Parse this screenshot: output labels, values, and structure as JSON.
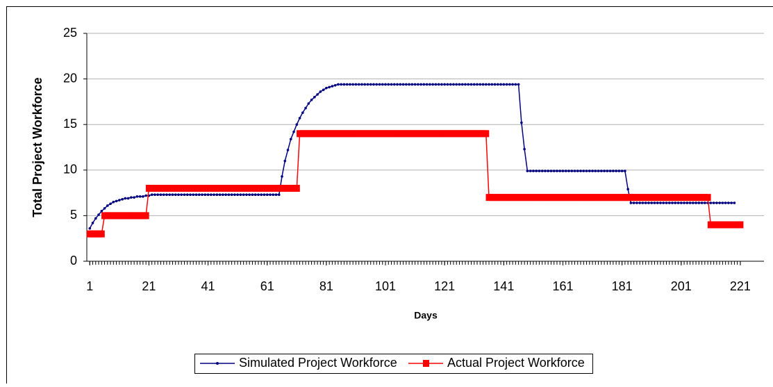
{
  "chart_data": {
    "type": "line",
    "xlabel": "Days",
    "ylabel": "Total Project Workforce",
    "xlim": [
      0,
      229
    ],
    "ylim": [
      0,
      25
    ],
    "xticks": [
      1,
      21,
      41,
      61,
      81,
      101,
      121,
      141,
      161,
      181,
      201,
      221
    ],
    "yticks": [
      0,
      5,
      10,
      15,
      20,
      25
    ],
    "grid": true,
    "legend": "bottom",
    "x": [
      1,
      2,
      3,
      4,
      5,
      6,
      7,
      8,
      9,
      10,
      11,
      12,
      13,
      14,
      15,
      16,
      17,
      18,
      19,
      20,
      21,
      22,
      23,
      24,
      25,
      26,
      27,
      28,
      29,
      30,
      31,
      32,
      33,
      34,
      35,
      36,
      37,
      38,
      39,
      40,
      41,
      42,
      43,
      44,
      45,
      46,
      47,
      48,
      49,
      50,
      51,
      52,
      53,
      54,
      55,
      56,
      57,
      58,
      59,
      60,
      61,
      62,
      63,
      64,
      65,
      66,
      67,
      68,
      69,
      70,
      71,
      72,
      73,
      74,
      75,
      76,
      77,
      78,
      79,
      80,
      81,
      82,
      83,
      84,
      85,
      86,
      87,
      88,
      89,
      90,
      91,
      92,
      93,
      94,
      95,
      96,
      97,
      98,
      99,
      100,
      101,
      102,
      103,
      104,
      105,
      106,
      107,
      108,
      109,
      110,
      111,
      112,
      113,
      114,
      115,
      116,
      117,
      118,
      119,
      120,
      121,
      122,
      123,
      124,
      125,
      126,
      127,
      128,
      129,
      130,
      131,
      132,
      133,
      134,
      135,
      136,
      137,
      138,
      139,
      140,
      141,
      142,
      143,
      144,
      145,
      146,
      147,
      148,
      149,
      150,
      151,
      152,
      153,
      154,
      155,
      156,
      157,
      158,
      159,
      160,
      161,
      162,
      163,
      164,
      165,
      166,
      167,
      168,
      169,
      170,
      171,
      172,
      173,
      174,
      175,
      176,
      177,
      178,
      179,
      180,
      181,
      182,
      183,
      184,
      185,
      186,
      187,
      188,
      189,
      190,
      191,
      192,
      193,
      194,
      195,
      196,
      197,
      198,
      199,
      200,
      201,
      202,
      203,
      204,
      205,
      206,
      207,
      208,
      209,
      210,
      211,
      212,
      213,
      214,
      215,
      216,
      217,
      218,
      219,
      220,
      221
    ],
    "series": [
      {
        "name": "Simulated Project Workforce",
        "color": "#000080",
        "marker": "dot",
        "values": [
          3.6,
          4.2,
          4.7,
          5.1,
          5.5,
          5.8,
          6.1,
          6.3,
          6.5,
          6.6,
          6.7,
          6.8,
          6.9,
          6.9,
          7.0,
          7.0,
          7.1,
          7.1,
          7.1,
          7.2,
          7.2,
          7.3,
          7.3,
          7.3,
          7.3,
          7.3,
          7.3,
          7.3,
          7.3,
          7.3,
          7.3,
          7.3,
          7.3,
          7.3,
          7.3,
          7.3,
          7.3,
          7.3,
          7.3,
          7.3,
          7.3,
          7.3,
          7.3,
          7.3,
          7.3,
          7.3,
          7.3,
          7.3,
          7.3,
          7.3,
          7.3,
          7.3,
          7.3,
          7.3,
          7.3,
          7.3,
          7.3,
          7.3,
          7.3,
          7.3,
          7.3,
          7.3,
          7.3,
          7.3,
          7.3,
          9.3,
          11.0,
          12.2,
          13.4,
          14.2,
          15.0,
          15.7,
          16.3,
          16.8,
          17.3,
          17.7,
          18.0,
          18.3,
          18.6,
          18.8,
          19.0,
          19.1,
          19.2,
          19.3,
          19.4,
          19.4,
          19.4,
          19.4,
          19.4,
          19.4,
          19.4,
          19.4,
          19.4,
          19.4,
          19.4,
          19.4,
          19.4,
          19.4,
          19.4,
          19.4,
          19.4,
          19.4,
          19.4,
          19.4,
          19.4,
          19.4,
          19.4,
          19.4,
          19.4,
          19.4,
          19.4,
          19.4,
          19.4,
          19.4,
          19.4,
          19.4,
          19.4,
          19.4,
          19.4,
          19.4,
          19.4,
          19.4,
          19.4,
          19.4,
          19.4,
          19.4,
          19.4,
          19.4,
          19.4,
          19.4,
          19.4,
          19.4,
          19.4,
          19.4,
          19.4,
          19.4,
          19.4,
          19.4,
          19.4,
          19.4,
          19.4,
          19.4,
          19.4,
          19.4,
          19.4,
          19.4,
          15.2,
          12.3,
          9.9,
          9.9,
          9.9,
          9.9,
          9.9,
          9.9,
          9.9,
          9.9,
          9.9,
          9.9,
          9.9,
          9.9,
          9.9,
          9.9,
          9.9,
          9.9,
          9.9,
          9.9,
          9.9,
          9.9,
          9.9,
          9.9,
          9.9,
          9.9,
          9.9,
          9.9,
          9.9,
          9.9,
          9.9,
          9.9,
          9.9,
          9.9,
          9.9,
          9.9,
          7.9,
          6.4,
          6.4,
          6.4,
          6.4,
          6.4,
          6.4,
          6.4,
          6.4,
          6.4,
          6.4,
          6.4,
          6.4,
          6.4,
          6.4,
          6.4,
          6.4,
          6.4,
          6.4,
          6.4,
          6.4,
          6.4,
          6.4,
          6.4,
          6.4,
          6.4,
          6.4,
          6.4,
          6.4,
          6.4,
          6.4,
          6.4,
          6.4,
          6.4,
          6.4,
          6.4,
          6.4,
          null,
          null
        ]
      },
      {
        "name": "Actual Project Workforce",
        "color": "#ff0000",
        "marker": "square",
        "values": [
          3,
          3,
          3,
          3,
          3,
          5,
          5,
          5,
          5,
          5,
          5,
          5,
          5,
          5,
          5,
          5,
          5,
          5,
          5,
          5,
          8,
          8,
          8,
          8,
          8,
          8,
          8,
          8,
          8,
          8,
          8,
          8,
          8,
          8,
          8,
          8,
          8,
          8,
          8,
          8,
          8,
          8,
          8,
          8,
          8,
          8,
          8,
          8,
          8,
          8,
          8,
          8,
          8,
          8,
          8,
          8,
          8,
          8,
          8,
          8,
          8,
          8,
          8,
          8,
          8,
          8,
          8,
          8,
          8,
          8,
          8,
          14,
          14,
          14,
          14,
          14,
          14,
          14,
          14,
          14,
          14,
          14,
          14,
          14,
          14,
          14,
          14,
          14,
          14,
          14,
          14,
          14,
          14,
          14,
          14,
          14,
          14,
          14,
          14,
          14,
          14,
          14,
          14,
          14,
          14,
          14,
          14,
          14,
          14,
          14,
          14,
          14,
          14,
          14,
          14,
          14,
          14,
          14,
          14,
          14,
          14,
          14,
          14,
          14,
          14,
          14,
          14,
          14,
          14,
          14,
          14,
          14,
          14,
          14,
          14,
          7,
          7,
          7,
          7,
          7,
          7,
          7,
          7,
          7,
          7,
          7,
          7,
          7,
          7,
          7,
          7,
          7,
          7,
          7,
          7,
          7,
          7,
          7,
          7,
          7,
          7,
          7,
          7,
          7,
          7,
          7,
          7,
          7,
          7,
          7,
          7,
          7,
          7,
          7,
          7,
          7,
          7,
          7,
          7,
          7,
          7,
          7,
          7,
          7,
          7,
          7,
          7,
          7,
          7,
          7,
          7,
          7,
          7,
          7,
          7,
          7,
          7,
          7,
          7,
          7,
          7,
          7,
          7,
          7,
          7,
          7,
          7,
          7,
          7,
          7,
          4,
          4,
          4,
          4,
          4,
          4,
          4,
          4,
          4,
          4,
          4
        ]
      }
    ]
  }
}
